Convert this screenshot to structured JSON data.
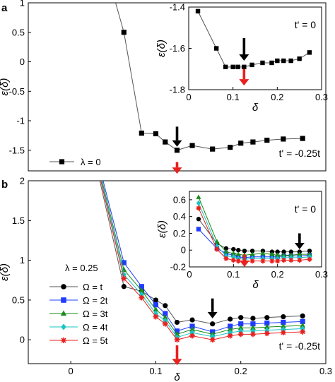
{
  "colors": {
    "black": "#000000",
    "blue": "#1f3cff",
    "green": "#1a8a1a",
    "cyan": "#19c4c4",
    "red": "#e8201e",
    "gray": "#555555"
  },
  "chart_data": [
    {
      "id": "a-main",
      "panel": "a",
      "type": "line",
      "xlim": [
        -0.05,
        0.3
      ],
      "ylim": [
        -1.85,
        1.0
      ],
      "xticks": [],
      "yticks": [
        1,
        0.5,
        0,
        -0.5,
        -1,
        -1.5
      ],
      "ytick_labels": [
        "1",
        "0.5",
        "0",
        "-0.5",
        "-1",
        "-1.5"
      ],
      "ylabel": "ε(δ)",
      "annotation": "t' = -0.25t",
      "series": [
        {
          "name": "λ = 0",
          "color": "#000000",
          "marker": "square",
          "x": [
            0.0,
            0.0625,
            0.0833,
            0.1,
            0.1111,
            0.125,
            0.1429,
            0.1667,
            0.1875,
            0.2,
            0.2143,
            0.2308,
            0.25,
            0.2727
          ],
          "y": [
            3.7,
            0.5,
            -1.21,
            -1.22,
            -1.36,
            -1.5,
            -1.42,
            -1.48,
            -1.45,
            -1.38,
            -1.36,
            -1.33,
            -1.31,
            -1.3
          ]
        }
      ],
      "legend": "bottom-left",
      "arrows": [
        {
          "color": "black",
          "x": 0.125,
          "y_from": -1.1,
          "y_to": -1.44
        },
        {
          "color": "red",
          "x": 0.125,
          "y_from": -1.7,
          "y_to": -1.9
        }
      ]
    },
    {
      "id": "a-inset",
      "panel": "a",
      "type": "line",
      "xlim": [
        0,
        0.3
      ],
      "ylim": [
        -1.8,
        -1.4
      ],
      "xticks": [
        0,
        0.1,
        0.2,
        0.3
      ],
      "xtick_labels": [
        "0",
        "0.1",
        "0.2",
        "0.3"
      ],
      "yticks": [
        -1.4,
        -1.6,
        -1.8
      ],
      "ytick_labels": [
        "-1.4",
        "-1.6",
        "-1.8"
      ],
      "xlabel": "δ",
      "ylabel": "ε(δ)",
      "annotation": "t' = 0",
      "series": [
        {
          "name": "",
          "color": "#000000",
          "marker": "square",
          "x": [
            0.0208,
            0.0625,
            0.0833,
            0.1,
            0.1111,
            0.125,
            0.1429,
            0.1667,
            0.1875,
            0.2,
            0.2143,
            0.2308,
            0.25,
            0.2727
          ],
          "y": [
            -1.42,
            -1.6,
            -1.69,
            -1.69,
            -1.69,
            -1.69,
            -1.68,
            -1.67,
            -1.67,
            -1.66,
            -1.66,
            -1.66,
            -1.65,
            -1.62
          ]
        }
      ],
      "arrows": [
        {
          "color": "black",
          "x": 0.125,
          "y_from": -1.55,
          "y_to": -1.66
        },
        {
          "color": "red",
          "x": 0.125,
          "y_from": -1.7,
          "y_to": -1.78
        }
      ]
    },
    {
      "id": "b-main",
      "panel": "b",
      "type": "line",
      "xlim": [
        -0.05,
        0.3
      ],
      "ylim": [
        -0.3,
        2.0
      ],
      "xticks": [
        0,
        0.1,
        0.2,
        0.3
      ],
      "xtick_labels": [
        "0",
        "0.1",
        "0.2",
        "0.3"
      ],
      "yticks": [
        2,
        1.5,
        1,
        0.5,
        0
      ],
      "ytick_labels": [
        "2",
        "1.5",
        "1",
        "0.5",
        "0"
      ],
      "xlabel": "δ",
      "ylabel": "ε(δ)",
      "annotation": "t' = -0.25t",
      "legend_title": "λ = 0.25",
      "legend": "middle-left",
      "x": [
        0.0,
        0.0625,
        0.0833,
        0.1,
        0.1111,
        0.125,
        0.1429,
        0.1667,
        0.1875,
        0.2,
        0.2143,
        0.2308,
        0.25,
        0.2727
      ],
      "series": [
        {
          "name": "Ω = t",
          "color": "#000000",
          "marker": "circle",
          "y": [
            3.6,
            0.67,
            0.61,
            0.5,
            0.43,
            0.22,
            0.25,
            0.2,
            0.26,
            0.28,
            0.27,
            0.28,
            0.29,
            0.3
          ]
        },
        {
          "name": "Ω = 2t",
          "color": "#1f3cff",
          "marker": "square",
          "y": [
            3.6,
            0.97,
            0.67,
            0.44,
            0.33,
            0.11,
            0.17,
            0.1,
            0.17,
            0.2,
            0.2,
            0.21,
            0.22,
            0.23
          ]
        },
        {
          "name": "Ω = 3t",
          "color": "#1a8a1a",
          "marker": "triangle",
          "y": [
            3.6,
            0.88,
            0.62,
            0.38,
            0.28,
            0.07,
            0.13,
            0.07,
            0.13,
            0.15,
            0.15,
            0.16,
            0.17,
            0.18
          ]
        },
        {
          "name": "Ω = 4t",
          "color": "#19c4c4",
          "marker": "diamond",
          "y": [
            3.6,
            0.82,
            0.57,
            0.33,
            0.24,
            0.03,
            0.09,
            0.04,
            0.09,
            0.11,
            0.11,
            0.12,
            0.13,
            0.14
          ]
        },
        {
          "name": "Ω = 5t",
          "color": "#e8201e",
          "marker": "star",
          "y": [
            3.6,
            0.77,
            0.53,
            0.29,
            0.2,
            0.0,
            0.05,
            0.0,
            0.05,
            0.07,
            0.07,
            0.08,
            0.09,
            0.1
          ]
        }
      ],
      "arrows": [
        {
          "color": "black",
          "x": 0.1667,
          "y_from": 0.52,
          "y_to": 0.27
        },
        {
          "color": "red",
          "x": 0.125,
          "y_from": -0.07,
          "y_to": -0.32
        }
      ]
    },
    {
      "id": "b-inset",
      "panel": "b",
      "type": "line",
      "xlim": [
        0,
        0.3
      ],
      "ylim": [
        -0.2,
        0.7
      ],
      "xticks": [
        0,
        0.1,
        0.2,
        0.3
      ],
      "xtick_labels": [
        "0",
        "0.1",
        "0.2",
        "0.3"
      ],
      "yticks": [
        0.6,
        0.4,
        0.2,
        0,
        -0.2
      ],
      "ytick_labels": [
        "0.6",
        "0.4",
        "0.2",
        "0",
        "-0.2"
      ],
      "xlabel": "δ",
      "ylabel": "ε(δ)",
      "annotation": "t' = 0",
      "x": [
        0.0208,
        0.0625,
        0.0833,
        0.1,
        0.1111,
        0.125,
        0.1429,
        0.1667,
        0.1875,
        0.2,
        0.2143,
        0.2308,
        0.25,
        0.2727
      ],
      "series": [
        {
          "name": "Ω = t",
          "color": "#000000",
          "marker": "circle",
          "y": [
            0.37,
            0.08,
            0.02,
            0.01,
            0.0,
            -0.01,
            -0.01,
            -0.01,
            -0.02,
            -0.02,
            -0.02,
            -0.02,
            -0.02,
            -0.01
          ]
        },
        {
          "name": "Ω = 2t",
          "color": "#1f3cff",
          "marker": "square",
          "y": [
            0.25,
            0.02,
            -0.04,
            -0.06,
            -0.08,
            -0.09,
            -0.08,
            -0.08,
            -0.08,
            -0.08,
            -0.07,
            -0.07,
            -0.07,
            -0.06
          ]
        },
        {
          "name": "Ω = 3t",
          "color": "#1a8a1a",
          "marker": "triangle",
          "y": [
            0.63,
            0.1,
            -0.02,
            -0.04,
            -0.05,
            -0.06,
            -0.05,
            -0.04,
            -0.05,
            -0.06,
            -0.06,
            -0.06,
            -0.05,
            -0.05
          ]
        },
        {
          "name": "Ω = 4t",
          "color": "#19c4c4",
          "marker": "diamond",
          "y": [
            0.56,
            0.05,
            -0.07,
            -0.08,
            -0.1,
            -0.11,
            -0.1,
            -0.1,
            -0.1,
            -0.1,
            -0.09,
            -0.09,
            -0.09,
            -0.08
          ]
        },
        {
          "name": "Ω = 5t",
          "color": "#e8201e",
          "marker": "star",
          "y": [
            0.5,
            0.01,
            -0.1,
            -0.12,
            -0.13,
            -0.14,
            -0.13,
            -0.13,
            -0.13,
            -0.13,
            -0.12,
            -0.12,
            -0.12,
            -0.11
          ]
        }
      ],
      "arrows": [
        {
          "color": "black",
          "x": 0.25,
          "y_from": 0.2,
          "y_to": 0.01
        },
        {
          "color": "red",
          "x": 0.125,
          "y_from": -0.05,
          "y_to": -0.2
        }
      ]
    }
  ],
  "labels": {
    "panel_a": "a",
    "panel_b": "b"
  }
}
